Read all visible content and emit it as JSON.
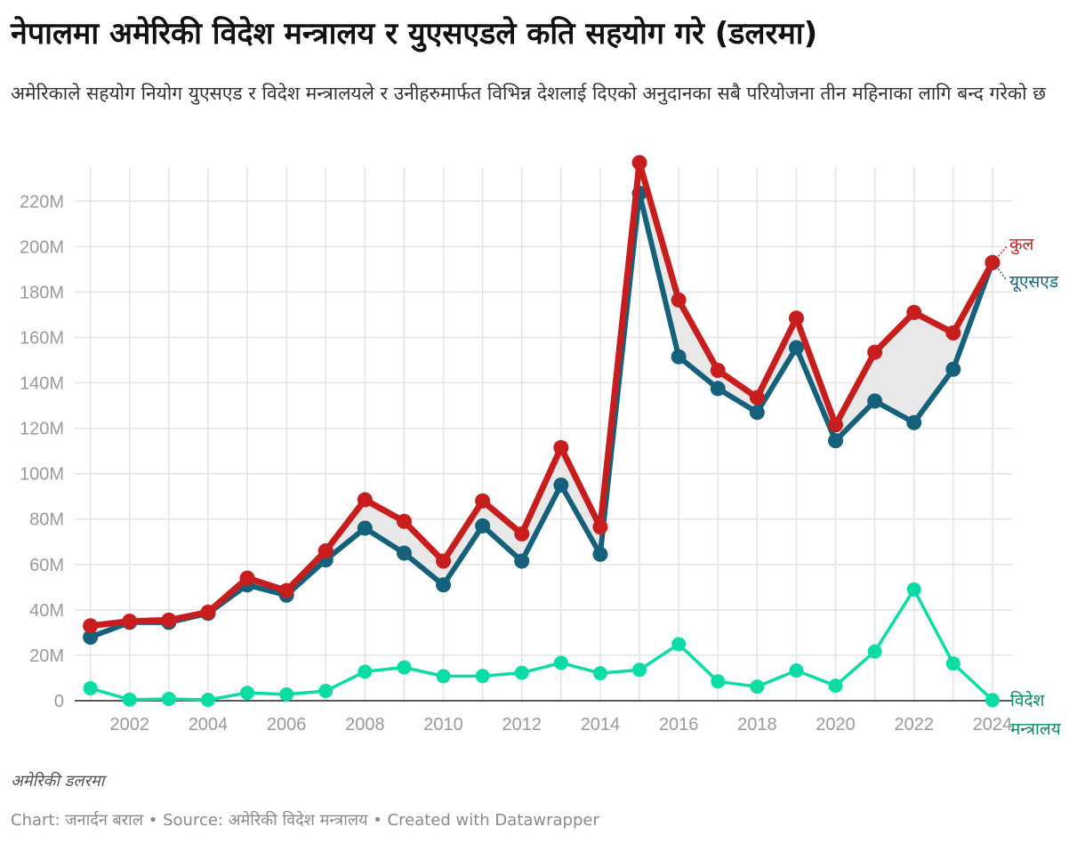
{
  "header": {
    "title": "नेपालमा अमेरिकी विदेश मन्त्रालय र युएसएडले कति सहयोग गरे (डलरमा)",
    "subtitle": "अमेरिकाले सहयोग नियोग युएसएड र विदेश मन्त्रालयले र उनीहरुमार्फत विभिन्न देशलाई दिएको अनुदानका सबै परियोजना तीन महिनाका लागि बन्द गरेको छ"
  },
  "chart_data": {
    "type": "line",
    "title": "नेपालमा अमेरिकी विदेश मन्त्रालय र युएसएडले कति सहयोग गरे (डलरमा)",
    "xlabel": "",
    "ylabel": "",
    "x": [
      2001,
      2002,
      2003,
      2004,
      2005,
      2006,
      2007,
      2008,
      2009,
      2010,
      2011,
      2012,
      2013,
      2014,
      2015,
      2016,
      2017,
      2018,
      2019,
      2020,
      2021,
      2022,
      2023,
      2024
    ],
    "xlim": [
      2000.6,
      2024.5
    ],
    "ylim": [
      0,
      235000000
    ],
    "x_ticks": [
      2002,
      2004,
      2006,
      2008,
      2010,
      2012,
      2014,
      2016,
      2018,
      2020,
      2022,
      2024
    ],
    "y_ticks": [
      0,
      20000000,
      40000000,
      60000000,
      80000000,
      100000000,
      120000000,
      140000000,
      160000000,
      180000000,
      200000000,
      220000000
    ],
    "y_tick_labels": [
      "0",
      "20M",
      "40M",
      "60M",
      "80M",
      "100M",
      "120M",
      "140M",
      "160M",
      "180M",
      "200M",
      "220M"
    ],
    "grid": true,
    "shaded_between": [
      "कुल",
      "यूएसएड"
    ],
    "series": [
      {
        "name": "कुल",
        "color": "#c71e1d",
        "values": [
          33000000,
          35000000,
          35500000,
          39000000,
          54000000,
          48500000,
          66000000,
          88500000,
          79000000,
          61500000,
          88000000,
          73500000,
          111500000,
          76500000,
          237000000,
          176500000,
          145500000,
          133500000,
          168500000,
          121500000,
          153500000,
          171000000,
          162000000,
          193000000
        ]
      },
      {
        "name": "यूएसएड",
        "color": "#15607a",
        "values": [
          28000000,
          34500000,
          34500000,
          38500000,
          51000000,
          46500000,
          62000000,
          76000000,
          65000000,
          51000000,
          77000000,
          61500000,
          95000000,
          64500000,
          223500000,
          151500000,
          137500000,
          127000000,
          155500000,
          114500000,
          132000000,
          122500000,
          146000000,
          193000000
        ]
      },
      {
        "name": "विदेश मन्त्रालय",
        "color": "#09dca4",
        "label_color": "#0b8a66",
        "values": [
          5500000,
          500000,
          800000,
          400000,
          3500000,
          2800000,
          4300000,
          12800000,
          14700000,
          10800000,
          10900000,
          12300000,
          16700000,
          12100000,
          13600000,
          24900000,
          8500000,
          6200000,
          13300000,
          6600000,
          21700000,
          49000000,
          16400000,
          300000
        ]
      }
    ]
  },
  "footer": {
    "note": "अमेरिकी डलरमा",
    "credit": "Chart: जनार्दन बराल • Source: अमेरिकी विदेश मन्त्रालय • Created with Datawrapper"
  }
}
